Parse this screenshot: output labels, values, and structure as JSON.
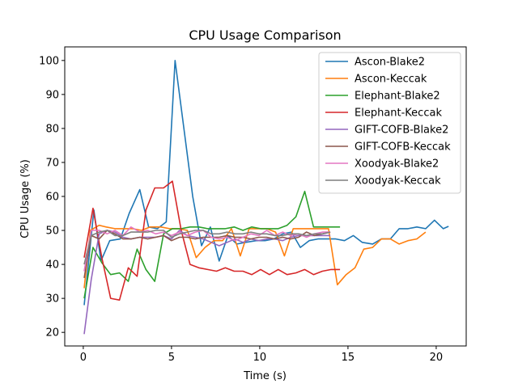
{
  "chart_data": {
    "type": "line",
    "title": "CPU Usage Comparison",
    "xlabel": "Time (s)",
    "ylabel": "CPU Usage (%)",
    "xlim": [
      -1.05,
      21.7
    ],
    "ylim": [
      16,
      104
    ],
    "xticks": [
      0,
      5,
      10,
      15,
      20
    ],
    "yticks": [
      20,
      30,
      40,
      50,
      60,
      70,
      80,
      90,
      100
    ],
    "grid": false,
    "legend_position": "top-right",
    "series": [
      {
        "name": "Ascon-Blake2",
        "color": "#1f77b4",
        "x": [
          0.05,
          0.6,
          1.0,
          1.5,
          2.1,
          2.6,
          3.2,
          3.7,
          4.2,
          4.7,
          5.2,
          5.7,
          6.2,
          6.7,
          7.2,
          7.7,
          8.2,
          8.7,
          9.2,
          9.8,
          10.3,
          10.8,
          11.3,
          11.8,
          12.3,
          12.8,
          13.3,
          13.8,
          14.3,
          14.8,
          15.3,
          15.8,
          16.4,
          16.9,
          17.4,
          17.9,
          18.4,
          18.9,
          19.4,
          19.9,
          20.4,
          20.7
        ],
        "y": [
          28,
          56,
          41,
          47,
          47.5,
          55,
          62,
          51,
          50.5,
          52.5,
          100,
          80,
          60,
          45.5,
          51,
          41,
          48.5,
          46,
          46.5,
          47,
          47,
          47.5,
          49,
          49.5,
          45,
          47,
          47.5,
          47.5,
          47.5,
          47,
          48.5,
          46.5,
          46,
          47.5,
          47.5,
          50.5,
          50.5,
          51,
          50.5,
          53,
          50.5,
          51.2
        ]
      },
      {
        "name": "Ascon-Keccak",
        "color": "#ff7f0e",
        "x": [
          0.05,
          0.4,
          0.9,
          1.3,
          1.8,
          2.3,
          2.8,
          3.3,
          3.8,
          4.4,
          4.9,
          5.4,
          5.9,
          6.4,
          6.9,
          7.4,
          7.9,
          8.4,
          8.9,
          9.4,
          9.9,
          10.4,
          10.9,
          11.4,
          11.9,
          12.4,
          12.9,
          13.4,
          13.9,
          14.4,
          14.9,
          15.4,
          15.9,
          16.4,
          16.9,
          17.4,
          17.9,
          18.4,
          18.9,
          19.4
        ],
        "y": [
          33,
          50,
          51.5,
          51,
          50.5,
          50.5,
          50.5,
          50,
          51,
          51,
          50.5,
          50.5,
          50,
          42,
          45,
          47,
          47,
          50.5,
          42.5,
          50.5,
          50.5,
          50.5,
          49.5,
          42.5,
          50.5,
          50.5,
          50.5,
          50.5,
          50.5,
          34,
          37,
          39,
          44.5,
          45,
          47.5,
          47.5,
          46,
          47,
          47.5,
          49.5
        ]
      },
      {
        "name": "Elephant-Blake2",
        "color": "#2ca02c",
        "x": [
          0.05,
          0.55,
          1.05,
          1.55,
          2.05,
          2.55,
          3.05,
          3.55,
          4.05,
          4.55,
          5.05,
          5.55,
          6.05,
          6.55,
          7.05,
          7.55,
          8.05,
          8.55,
          9.05,
          9.55,
          10.05,
          10.55,
          11.05,
          11.55,
          12.05,
          12.55,
          13.05,
          13.55,
          14.05,
          14.55
        ],
        "y": [
          30,
          45,
          40.5,
          37,
          37.5,
          35,
          44.5,
          38.5,
          35,
          49,
          50.5,
          50.5,
          51,
          51,
          50.5,
          50.5,
          50.5,
          51,
          50,
          51,
          50.5,
          50.5,
          50.5,
          51.5,
          54,
          61.5,
          51,
          51,
          51,
          51
        ]
      },
      {
        "name": "Elephant-Keccak",
        "color": "#d62728",
        "x": [
          0.05,
          0.55,
          1.05,
          1.55,
          2.05,
          2.55,
          3.05,
          3.55,
          4.05,
          4.55,
          5.05,
          5.55,
          6.05,
          6.55,
          7.05,
          7.55,
          8.05,
          8.55,
          9.05,
          9.55,
          10.05,
          10.55,
          11.05,
          11.55,
          12.05,
          12.55,
          13.05,
          13.55,
          14.05,
          14.55
        ],
        "y": [
          42,
          56.5,
          42,
          30,
          29.5,
          39,
          36.5,
          56,
          62.5,
          62.5,
          64.5,
          50,
          40,
          39,
          38.5,
          38,
          39,
          38,
          38,
          37,
          38.5,
          37,
          38.5,
          37,
          37.5,
          38.5,
          37,
          38,
          38.5,
          38.5
        ]
      },
      {
        "name": "GIFT-COFB-Blake2",
        "color": "#9467bd",
        "x": [
          0.05,
          0.45,
          0.9,
          1.35,
          1.8,
          2.25,
          2.7,
          3.2,
          3.65,
          4.1,
          4.55,
          5.0,
          5.45,
          5.9,
          6.35,
          6.8,
          7.25,
          7.7,
          8.15,
          8.6,
          9.05,
          9.5,
          9.95,
          10.4,
          10.85,
          11.3,
          11.75,
          12.2,
          12.65,
          13.1,
          13.55,
          14.0
        ],
        "y": [
          19.5,
          35.5,
          49,
          50,
          49.5,
          48,
          47.5,
          48,
          48,
          48,
          48.5,
          47.5,
          50,
          48.5,
          48,
          47.5,
          46.5,
          45.5,
          46.5,
          47.5,
          46.5,
          47.5,
          47,
          47.5,
          47.5,
          47,
          48,
          48.5,
          48.5,
          48.5,
          48.5,
          48.5
        ]
      },
      {
        "name": "GIFT-COFB-Keccak",
        "color": "#8c564b",
        "x": [
          0.05,
          0.45,
          0.9,
          1.35,
          1.8,
          2.25,
          2.7,
          3.2,
          3.65,
          4.1,
          4.55,
          5.0,
          5.45,
          5.9,
          6.35,
          6.8,
          7.25,
          7.7,
          8.15,
          8.6,
          9.05,
          9.5,
          9.95,
          10.4,
          10.85,
          11.3,
          11.75,
          12.2,
          12.65,
          13.1,
          13.55,
          14.0
        ],
        "y": [
          36,
          48.5,
          47.5,
          50,
          49,
          47.5,
          47.5,
          48,
          47.5,
          48,
          48.5,
          47,
          48,
          48,
          47.5,
          48,
          48,
          48,
          48.5,
          48,
          48,
          47.5,
          48,
          48,
          47.5,
          48,
          47.5,
          48,
          49.5,
          48.5,
          49,
          49.5
        ]
      },
      {
        "name": "Xoodyak-Blake2",
        "color": "#e377c2",
        "x": [
          0.05,
          0.45,
          0.9,
          1.35,
          1.8,
          2.25,
          2.7,
          3.2,
          3.65,
          4.1,
          4.55,
          5.0,
          5.45,
          5.9,
          6.35,
          6.8,
          7.25,
          7.7,
          8.15,
          8.6,
          9.05,
          9.5,
          9.95,
          10.4,
          10.85,
          11.3,
          11.75,
          12.2,
          12.65,
          13.1,
          13.55,
          14.0
        ],
        "y": [
          38,
          50,
          50,
          49,
          50,
          48.5,
          51,
          49.5,
          50,
          49,
          49.5,
          48.5,
          49.5,
          48.5,
          49.5,
          50,
          48,
          47.5,
          48,
          47,
          48,
          49,
          48.5,
          50,
          48.5,
          49.5,
          48.5,
          49,
          48,
          49,
          49.5,
          49.5
        ]
      },
      {
        "name": "Xoodyak-Keccak",
        "color": "#7f7f7f",
        "x": [
          0.05,
          0.45,
          0.9,
          1.35,
          1.8,
          2.25,
          2.7,
          3.2,
          3.65,
          4.1,
          4.55,
          5.0,
          5.45,
          5.9,
          6.35,
          6.8,
          7.25,
          7.7,
          8.15,
          8.6,
          9.05,
          9.5,
          9.95,
          10.4,
          10.85,
          11.3,
          11.75,
          12.2,
          12.65,
          13.1,
          13.55,
          14.0
        ],
        "y": [
          40,
          48.5,
          49.5,
          50,
          48.5,
          48.5,
          49.5,
          49.5,
          49.5,
          50,
          50,
          48,
          49,
          49.5,
          50,
          50,
          49,
          49,
          49.5,
          49,
          49,
          49.5,
          49,
          49,
          48.5,
          48.5,
          49,
          49,
          48.5,
          49,
          49,
          49.5
        ]
      }
    ]
  }
}
